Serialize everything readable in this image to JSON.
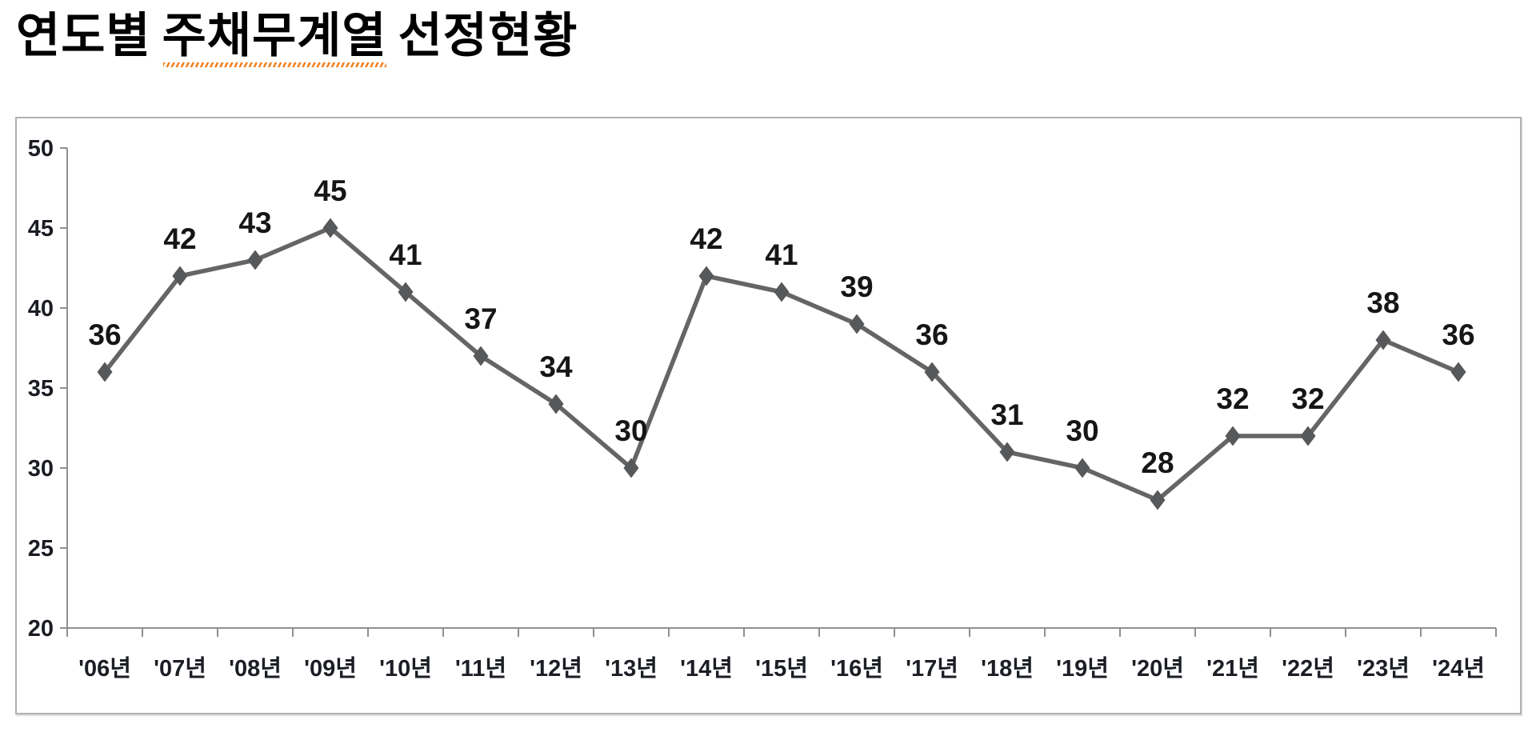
{
  "header": {
    "title_part1": "연도별",
    "title_part2_underlined": "주채무계열",
    "title_part3": "선정현황",
    "underline_color": "#f3801e"
  },
  "chart_data": {
    "type": "line",
    "title": "연도별 주채무계열 선정현황",
    "categories": [
      "'06년",
      "'07년",
      "'08년",
      "'09년",
      "'10년",
      "'11년",
      "'12년",
      "'13년",
      "'14년",
      "'15년",
      "'16년",
      "'17년",
      "'18년",
      "'19년",
      "'20년",
      "'21년",
      "'22년",
      "'23년",
      "'24년"
    ],
    "values": [
      36,
      42,
      43,
      45,
      41,
      37,
      34,
      30,
      42,
      41,
      39,
      36,
      31,
      30,
      28,
      32,
      32,
      38,
      36
    ],
    "xlabel": "",
    "ylabel": "",
    "ylim": [
      20,
      50
    ],
    "y_ticks": [
      20,
      25,
      30,
      35,
      40,
      45,
      50
    ],
    "grid": false,
    "legend": false,
    "data_labels": true,
    "line_color": "#656565",
    "marker": "diamond",
    "marker_color": "#57585a",
    "axis_color": "#8f8f8f",
    "data_label_color": "#161616",
    "tick_label_color": "#1b1e24"
  }
}
